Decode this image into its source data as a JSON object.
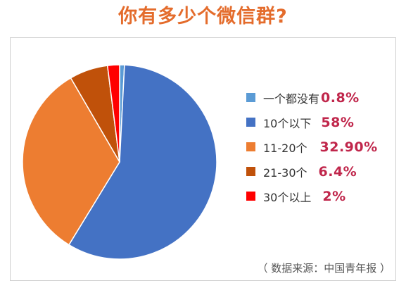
{
  "chart_data": {
    "type": "pie",
    "title": "你有多少个微信群?",
    "categories": [
      "一个都没有",
      "10个以下",
      "11-20个",
      "21-30个",
      "30个以上"
    ],
    "values": [
      0.8,
      58,
      32.9,
      6.4,
      2
    ],
    "value_labels": [
      "0.8%",
      "58%",
      "32.90%",
      "6.4%",
      "2%"
    ],
    "colors": [
      "#5B9BD5",
      "#4472C4",
      "#ED7D31",
      "#C0510A",
      "#FF0000"
    ],
    "legend_position": "right",
    "source": "（ 数据来源：中国青年报 ）"
  },
  "colors": {
    "title": "#E46C2C",
    "percent_text": "#C0264B"
  }
}
